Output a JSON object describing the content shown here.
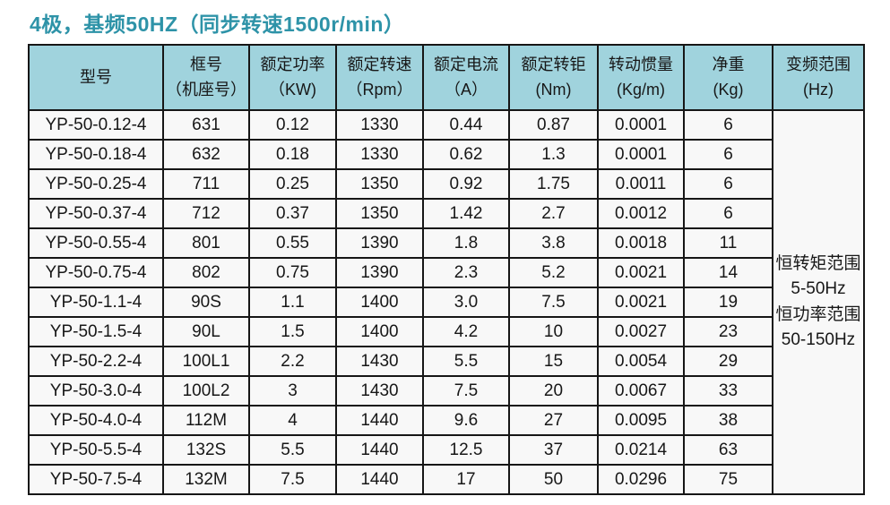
{
  "title": "4极，基频50HZ（同步转速1500r/min）",
  "colors": {
    "title": "#2e93a8",
    "header_bg": "#a0d3dd",
    "row_bg": "#f8f8f8",
    "border": "#161616"
  },
  "table": {
    "headers": [
      {
        "line1": "型号",
        "line2": ""
      },
      {
        "line1": "框号",
        "line2": "（机座号）"
      },
      {
        "line1": "额定功率",
        "line2": "（KW)"
      },
      {
        "line1": "额定转速",
        "line2": "（Rpm）"
      },
      {
        "line1": "额定电流",
        "line2": "（A）"
      },
      {
        "line1": "额定转钜",
        "line2": "(Nm)"
      },
      {
        "line1": "转动惯量",
        "line2": "(Kg/m)"
      },
      {
        "line1": "净重",
        "line2": "(Kg)"
      },
      {
        "line1": "变频范围",
        "line2": "(Hz)"
      }
    ],
    "rows": [
      [
        "YP-50-0.12-4",
        "631",
        "0.12",
        "1330",
        "0.44",
        "0.87",
        "0.0001",
        "6"
      ],
      [
        "YP-50-0.18-4",
        "632",
        "0.18",
        "1330",
        "0.62",
        "1.3",
        "0.0001",
        "6"
      ],
      [
        "YP-50-0.25-4",
        "711",
        "0.25",
        "1350",
        "0.92",
        "1.75",
        "0.0011",
        "6"
      ],
      [
        "YP-50-0.37-4",
        "712",
        "0.37",
        "1350",
        "1.42",
        "2.7",
        "0.0012",
        "6"
      ],
      [
        "YP-50-0.55-4",
        "801",
        "0.55",
        "1390",
        "1.8",
        "3.8",
        "0.0018",
        "11"
      ],
      [
        "YP-50-0.75-4",
        "802",
        "0.75",
        "1390",
        "2.3",
        "5.2",
        "0.0021",
        "14"
      ],
      [
        "YP-50-1.1-4",
        "90S",
        "1.1",
        "1400",
        "3.0",
        "7.5",
        "0.0021",
        "19"
      ],
      [
        "YP-50-1.5-4",
        "90L",
        "1.5",
        "1400",
        "4.2",
        "10",
        "0.0027",
        "23"
      ],
      [
        "YP-50-2.2-4",
        "100L1",
        "2.2",
        "1430",
        "5.5",
        "15",
        "0.0054",
        "29"
      ],
      [
        "YP-50-3.0-4",
        "100L2",
        "3",
        "1430",
        "7.5",
        "20",
        "0.0067",
        "33"
      ],
      [
        "YP-50-4.0-4",
        "112M",
        "4",
        "1440",
        "9.6",
        "27",
        "0.0095",
        "38"
      ],
      [
        "YP-50-5.5-4",
        "132S",
        "5.5",
        "1440",
        "12.5",
        "37",
        "0.0214",
        "63"
      ],
      [
        "YP-50-7.5-4",
        "132M",
        "7.5",
        "1440",
        "17",
        "50",
        "0.0296",
        "75"
      ]
    ],
    "note_lines": [
      "恒转矩范围",
      "5-50Hz",
      "恒功率范围",
      "50-150Hz"
    ]
  }
}
